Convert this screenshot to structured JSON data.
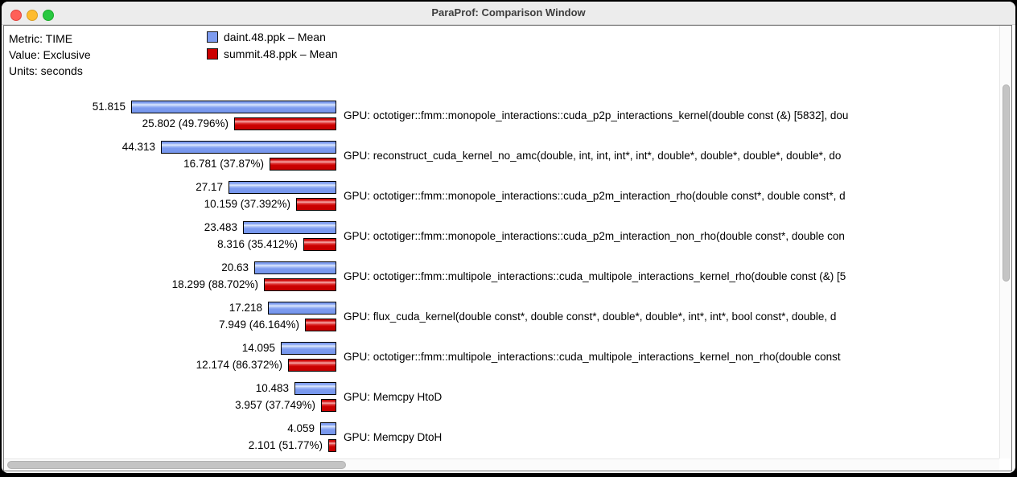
{
  "window": {
    "title": "ParaProf: Comparison Window"
  },
  "header": {
    "metric": "Metric: TIME",
    "value": "Value: Exclusive",
    "units": "Units: seconds"
  },
  "chart_data": {
    "type": "bar",
    "orientation": "horizontal",
    "metric": "TIME",
    "value_mode": "Exclusive",
    "units": "seconds",
    "legend_position": "top",
    "series": [
      {
        "name": "daint.48.ppk – Mean",
        "color": "#7E9CF0"
      },
      {
        "name": "summit.48.ppk – Mean",
        "color": "#CC0000"
      }
    ],
    "max_value": 51.815,
    "rows": [
      {
        "label": "GPU: octotiger::fmm::monopole_interactions::cuda_p2p_interactions_kernel(double const (&) [5832], dou",
        "values": [
          51.815,
          25.802
        ],
        "value_labels": [
          "51.815",
          "25.802 (49.796%)"
        ]
      },
      {
        "label": "GPU: reconstruct_cuda_kernel_no_amc(double, int, int, int*, int*, double*, double*, double*, double*, do",
        "values": [
          44.313,
          16.781
        ],
        "value_labels": [
          "44.313",
          "16.781 (37.87%)"
        ]
      },
      {
        "label": "GPU: octotiger::fmm::monopole_interactions::cuda_p2m_interaction_rho(double const*, double const*, d",
        "values": [
          27.17,
          10.159
        ],
        "value_labels": [
          "27.17",
          "10.159 (37.392%)"
        ]
      },
      {
        "label": "GPU: octotiger::fmm::monopole_interactions::cuda_p2m_interaction_non_rho(double const*, double con",
        "values": [
          23.483,
          8.316
        ],
        "value_labels": [
          "23.483",
          "8.316 (35.412%)"
        ]
      },
      {
        "label": "GPU: octotiger::fmm::multipole_interactions::cuda_multipole_interactions_kernel_rho(double const (&) [5",
        "values": [
          20.63,
          18.299
        ],
        "value_labels": [
          "20.63",
          "18.299 (88.702%)"
        ]
      },
      {
        "label": "GPU: flux_cuda_kernel(double const*, double const*, double*, double*, int*, int*, bool const*, double, d",
        "values": [
          17.218,
          7.949
        ],
        "value_labels": [
          "17.218",
          "7.949 (46.164%)"
        ]
      },
      {
        "label": "GPU: octotiger::fmm::multipole_interactions::cuda_multipole_interactions_kernel_non_rho(double const",
        "values": [
          14.095,
          12.174
        ],
        "value_labels": [
          "14.095",
          "12.174 (86.372%)"
        ]
      },
      {
        "label": "GPU: Memcpy HtoD",
        "values": [
          10.483,
          3.957
        ],
        "value_labels": [
          "10.483",
          "3.957 (37.749%)"
        ]
      },
      {
        "label": "GPU: Memcpy DtoH",
        "values": [
          4.059,
          2.101
        ],
        "value_labels": [
          "4.059",
          "2.101 (51.77%)"
        ]
      }
    ]
  }
}
